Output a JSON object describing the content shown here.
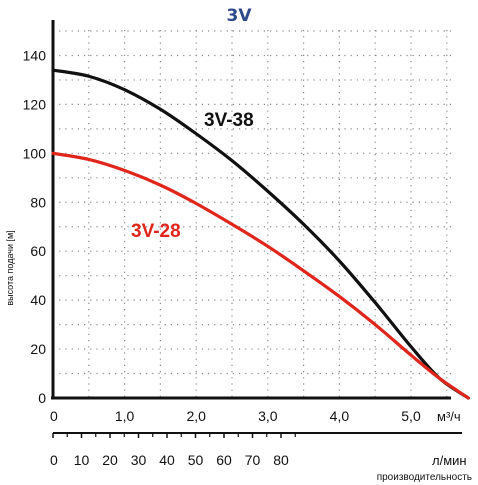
{
  "chart_data": {
    "type": "line",
    "title": "3V",
    "ylabel": "высота подачи [м]",
    "xlabel": "производительность",
    "ylim": [
      0,
      150
    ],
    "y_ticks": [
      0,
      20,
      40,
      60,
      80,
      100,
      120,
      140
    ],
    "x_axis_m3h": {
      "unit": "м³/ч",
      "xlim": [
        0,
        6.0
      ],
      "ticks": [
        0,
        1.0,
        2.0,
        3.0,
        4.0,
        5.0
      ],
      "tick_labels": [
        "0",
        "1,0",
        "2,0",
        "3,0",
        "4,0",
        "5,0"
      ]
    },
    "x_axis_lmin": {
      "unit": "л/мин",
      "ticks": [
        0,
        10,
        20,
        30,
        40,
        50,
        60,
        70,
        80
      ],
      "tick_labels": [
        "0",
        "10",
        "20",
        "30",
        "40",
        "50",
        "60",
        "70",
        "80"
      ]
    },
    "grid": true,
    "series": [
      {
        "name": "3V-38",
        "color": "#111111",
        "x": [
          0,
          0.5,
          1.0,
          1.5,
          2.0,
          2.5,
          3.0,
          3.5,
          4.0,
          4.5,
          5.0,
          5.4,
          5.8
        ],
        "y": [
          134,
          131.5,
          126,
          118,
          108,
          97,
          84.5,
          71,
          56,
          39,
          21,
          8,
          0
        ]
      },
      {
        "name": "3V-28",
        "color": "#e0251b",
        "x": [
          0,
          0.5,
          1.0,
          1.5,
          2.0,
          2.5,
          3.0,
          3.5,
          4.0,
          4.5,
          5.0,
          5.4,
          5.8
        ],
        "y": [
          100,
          97.5,
          93,
          87,
          79.5,
          71,
          62,
          52,
          41.5,
          30,
          17.5,
          8,
          0
        ]
      }
    ],
    "colors": {
      "title": "#2f4a8a",
      "axis": "#111111",
      "grid": "#8a8a8a"
    }
  }
}
